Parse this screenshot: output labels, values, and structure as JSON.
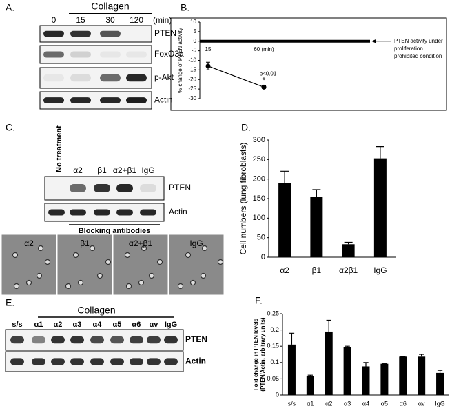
{
  "panel_labels": [
    "A.",
    "B.",
    "C.",
    "D.",
    "E.",
    "F."
  ],
  "blots": {
    "A": {
      "header": "Collagen",
      "lanes": [
        "0",
        "15",
        "30",
        "120"
      ],
      "unit": "(min)",
      "rows": [
        "PTEN",
        "FoxO3a",
        "p-Akt",
        "Actin"
      ]
    },
    "C": {
      "lanes": [
        "No treatment",
        "α2",
        "β1",
        "α2+β1",
        "IgG"
      ],
      "rows": [
        "PTEN",
        "Actin"
      ],
      "footer": "Blocking antibodies",
      "images": [
        "α2",
        "β1",
        "α2+β1",
        "IgG"
      ]
    },
    "E": {
      "header": "Collagen",
      "lanes": [
        "s/s",
        "α1",
        "α2",
        "α3",
        "α4",
        "α5",
        "α6",
        "αv",
        "IgG"
      ],
      "rows": [
        "PTEN",
        "Actin"
      ]
    }
  },
  "chart_data": [
    {
      "type": "line",
      "ylabel": "% change of PTEN activity",
      "categories": [
        "15",
        "60 (min)"
      ],
      "values": [
        -13,
        -24
      ],
      "errors": [
        2,
        0.7
      ],
      "color": "#000000",
      "ylim": [
        -30,
        10
      ],
      "yticks": [
        10,
        5,
        0,
        -5,
        -10,
        -15,
        -20,
        -25,
        -30
      ],
      "annotations": {
        "significance": "p<0.01",
        "star": "*",
        "note": [
          "PTEN activity under",
          "proliferation",
          "prohibited condition"
        ]
      }
    },
    {
      "type": "bar",
      "ylabel": "Cell numbers (lung fibroblasts)",
      "categories": [
        "α2",
        "β1",
        "α2β1",
        "IgG"
      ],
      "values": [
        190,
        155,
        33,
        253
      ],
      "errors": [
        30,
        18,
        5,
        30
      ],
      "color": "#000000",
      "ylim": [
        0,
        300
      ],
      "yticks": [
        0,
        50,
        100,
        150,
        200,
        250,
        300
      ]
    },
    {
      "type": "bar",
      "ylabel": [
        "Fold change in PTEN levels",
        "(PTEN/Actin, arbitrary units)"
      ],
      "categories": [
        "s/s",
        "α1",
        "α2",
        "α3",
        "α4",
        "α5",
        "α6",
        "αv",
        "IgG"
      ],
      "values": [
        0.155,
        0.058,
        0.195,
        0.147,
        0.088,
        0.096,
        0.118,
        0.118,
        0.068
      ],
      "errors": [
        0.035,
        0.003,
        0.035,
        0.003,
        0.012,
        0.001,
        0,
        0.007,
        0.008
      ],
      "color": "#000000",
      "ylim": [
        0,
        0.25
      ],
      "yticks": [
        0,
        0.05,
        0.1,
        0.15,
        0.2,
        0.25
      ]
    }
  ]
}
